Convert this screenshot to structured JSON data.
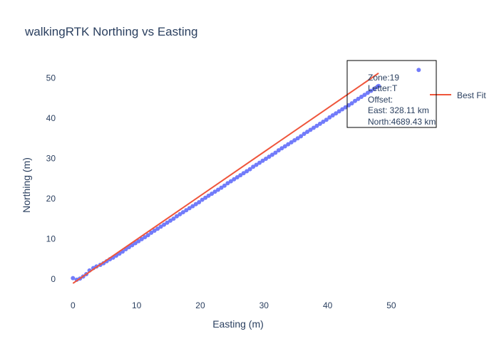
{
  "chart_data": {
    "type": "scatter",
    "title": "walkingRTK Northing vs Easting",
    "xlabel": "Easting (m)",
    "ylabel": "Northing (m)",
    "xlim": [
      -2.5,
      56.5
    ],
    "ylim": [
      -5,
      57
    ],
    "xticks": [
      0,
      10,
      20,
      30,
      40,
      50
    ],
    "yticks": [
      0,
      10,
      20,
      30,
      40,
      50
    ],
    "grid": false,
    "legend": {
      "position": "right",
      "entries": [
        "Best Fit"
      ]
    },
    "series": [
      {
        "mode": "markers",
        "color": "#636efa",
        "x": [
          0,
          0.6,
          1.1,
          1.6,
          2.1,
          2.6,
          3.2,
          3.7,
          4.3,
          4.8,
          5.3,
          5.8,
          6.3,
          6.8,
          7.3,
          7.8,
          8.3,
          8.8,
          9.3,
          9.8,
          10.3,
          10.8,
          11.3,
          11.8,
          12.3,
          12.8,
          13.3,
          13.8,
          14.3,
          14.8,
          15.3,
          15.8,
          16.3,
          16.8,
          17.3,
          17.8,
          18.3,
          18.8,
          19.3,
          19.8,
          20.3,
          20.8,
          21.3,
          21.8,
          22.3,
          22.8,
          23.3,
          23.8,
          24.3,
          24.8,
          25.3,
          25.8,
          26.3,
          26.8,
          27.3,
          27.8,
          28.3,
          28.8,
          29.3,
          29.8,
          30.3,
          30.8,
          31.3,
          31.8,
          32.3,
          32.8,
          33.3,
          33.8,
          34.3,
          34.8,
          35.3,
          35.8,
          36.3,
          36.8,
          37.3,
          37.8,
          38.3,
          38.8,
          39.3,
          39.8,
          40.3,
          40.8,
          41.3,
          41.8,
          42.3,
          42.8,
          43.3,
          43.8,
          44.3,
          44.8,
          45.3,
          45.8,
          46.3,
          46.8,
          47.3,
          47.8,
          48.0,
          54.3
        ],
        "y": [
          0.2,
          -0.2,
          0.1,
          0.6,
          1.2,
          2.1,
          2.7,
          3.1,
          3.5,
          3.9,
          4.4,
          4.9,
          5.3,
          5.8,
          6.3,
          6.8,
          7.4,
          7.9,
          8.4,
          8.9,
          9.4,
          9.9,
          10.4,
          10.9,
          11.5,
          12.0,
          12.5,
          13.0,
          13.5,
          14.0,
          14.5,
          15.0,
          15.6,
          16.1,
          16.6,
          17.1,
          17.6,
          18.1,
          18.6,
          19.1,
          19.7,
          20.2,
          20.7,
          21.2,
          21.7,
          22.2,
          22.7,
          23.2,
          23.8,
          24.3,
          24.8,
          25.3,
          25.8,
          26.3,
          26.8,
          27.3,
          27.9,
          28.4,
          28.9,
          29.4,
          29.9,
          30.4,
          30.9,
          31.4,
          32.0,
          32.5,
          33.0,
          33.5,
          34.0,
          34.5,
          35.0,
          35.5,
          36.1,
          36.6,
          37.1,
          37.6,
          38.1,
          38.6,
          39.1,
          39.6,
          40.2,
          40.7,
          41.2,
          41.7,
          42.2,
          42.7,
          43.2,
          43.7,
          44.3,
          44.8,
          45.3,
          45.8,
          46.3,
          46.8,
          47.3,
          47.8,
          48.0,
          52.0
        ]
      },
      {
        "name": "Best Fit",
        "mode": "lines",
        "color": "#ef553b",
        "x": [
          0,
          48
        ],
        "y": [
          -1.1,
          51.2
        ]
      }
    ],
    "annotation": {
      "lines": [
        "Zone:19",
        "Letter:T",
        "Offset:",
        "East: 328.11 km",
        "North:4689.43 km"
      ]
    }
  }
}
